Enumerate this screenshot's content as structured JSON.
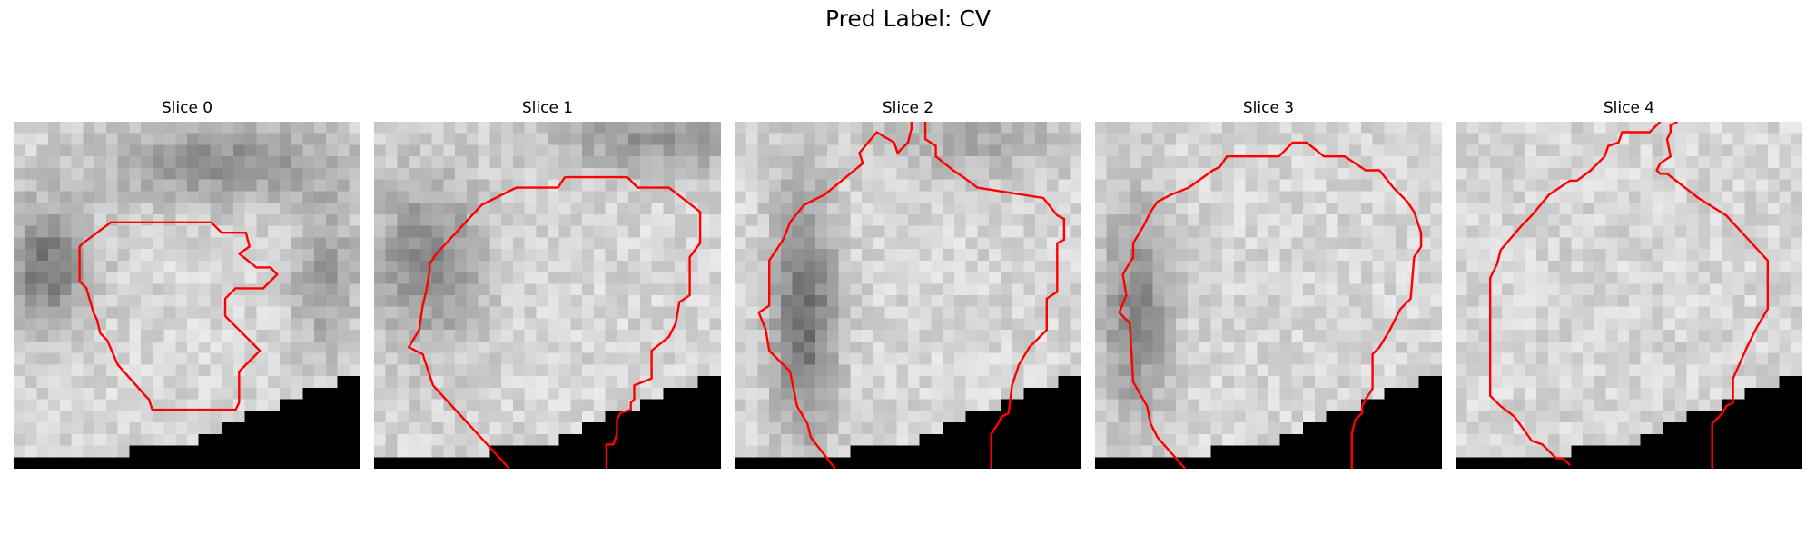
{
  "figure": {
    "title": "Pred Label: CV"
  },
  "panels": [
    {
      "title": "Slice 0",
      "seed": 11,
      "dark_band": "upper-left",
      "contour": [
        [
          0.2,
          0.35
        ],
        [
          0.28,
          0.29
        ],
        [
          0.57,
          0.29
        ],
        [
          0.6,
          0.32
        ],
        [
          0.67,
          0.32
        ],
        [
          0.68,
          0.36
        ],
        [
          0.65,
          0.38
        ],
        [
          0.7,
          0.42
        ],
        [
          0.74,
          0.42
        ],
        [
          0.76,
          0.44
        ],
        [
          0.72,
          0.48
        ],
        [
          0.64,
          0.48
        ],
        [
          0.61,
          0.51
        ],
        [
          0.61,
          0.56
        ],
        [
          0.71,
          0.66
        ],
        [
          0.65,
          0.72
        ],
        [
          0.65,
          0.81
        ],
        [
          0.64,
          0.83
        ],
        [
          0.4,
          0.83
        ],
        [
          0.39,
          0.8
        ],
        [
          0.38,
          0.79
        ],
        [
          0.3,
          0.7
        ],
        [
          0.27,
          0.63
        ],
        [
          0.25,
          0.61
        ],
        [
          0.24,
          0.57
        ],
        [
          0.23,
          0.55
        ],
        [
          0.21,
          0.48
        ],
        [
          0.19,
          0.46
        ],
        [
          0.19,
          0.36
        ]
      ],
      "closed": true
    },
    {
      "title": "Slice 1",
      "seed": 23,
      "dark_band": "left",
      "contour": [
        [
          0.39,
          1.0
        ],
        [
          0.17,
          0.76
        ],
        [
          0.14,
          0.67
        ],
        [
          0.1,
          0.65
        ],
        [
          0.13,
          0.6
        ],
        [
          0.14,
          0.53
        ],
        [
          0.15,
          0.49
        ],
        [
          0.16,
          0.43
        ],
        [
          0.16,
          0.41
        ],
        [
          0.18,
          0.38
        ],
        [
          0.31,
          0.24
        ],
        [
          0.35,
          0.22
        ],
        [
          0.41,
          0.19
        ],
        [
          0.53,
          0.19
        ],
        [
          0.55,
          0.16
        ],
        [
          0.73,
          0.16
        ],
        [
          0.76,
          0.19
        ],
        [
          0.85,
          0.19
        ],
        [
          0.94,
          0.26
        ],
        [
          0.94,
          0.35
        ],
        [
          0.91,
          0.39
        ],
        [
          0.91,
          0.5
        ],
        [
          0.88,
          0.52
        ],
        [
          0.87,
          0.58
        ],
        [
          0.85,
          0.62
        ],
        [
          0.8,
          0.66
        ],
        [
          0.8,
          0.74
        ],
        [
          0.75,
          0.76
        ],
        [
          0.75,
          0.8
        ],
        [
          0.74,
          0.81
        ],
        [
          0.74,
          0.83
        ],
        [
          0.71,
          0.84
        ],
        [
          0.7,
          0.86
        ],
        [
          0.7,
          0.9
        ],
        [
          0.69,
          0.93
        ],
        [
          0.67,
          0.93
        ],
        [
          0.67,
          1.0
        ]
      ],
      "closed": false
    },
    {
      "title": "Slice 2",
      "seed": 37,
      "dark_band": "left-strip",
      "contour": [
        [
          0.29,
          1.0
        ],
        [
          0.22,
          0.91
        ],
        [
          0.21,
          0.87
        ],
        [
          0.18,
          0.82
        ],
        [
          0.16,
          0.72
        ],
        [
          0.1,
          0.66
        ],
        [
          0.09,
          0.6
        ],
        [
          0.07,
          0.55
        ],
        [
          0.1,
          0.53
        ],
        [
          0.1,
          0.4
        ],
        [
          0.14,
          0.34
        ],
        [
          0.16,
          0.29
        ],
        [
          0.2,
          0.24
        ],
        [
          0.26,
          0.21
        ],
        [
          0.37,
          0.12
        ],
        [
          0.36,
          0.09
        ],
        [
          0.41,
          0.03
        ],
        [
          0.46,
          0.06
        ],
        [
          0.47,
          0.09
        ],
        [
          0.5,
          0.06
        ],
        [
          0.51,
          0.02
        ],
        [
          0.51,
          0.0
        ]
      ],
      "closed": false
    },
    {
      "title": "Slice 3",
      "seed": 53,
      "dark_band": "left-mid",
      "contour": [
        [
          0.26,
          1.0
        ],
        [
          0.18,
          0.91
        ],
        [
          0.16,
          0.87
        ],
        [
          0.15,
          0.82
        ],
        [
          0.11,
          0.75
        ],
        [
          0.1,
          0.58
        ],
        [
          0.07,
          0.55
        ],
        [
          0.09,
          0.5
        ],
        [
          0.08,
          0.44
        ],
        [
          0.11,
          0.39
        ],
        [
          0.11,
          0.35
        ],
        [
          0.14,
          0.3
        ],
        [
          0.16,
          0.26
        ],
        [
          0.18,
          0.23
        ],
        [
          0.22,
          0.21
        ],
        [
          0.27,
          0.19
        ],
        [
          0.34,
          0.14
        ],
        [
          0.36,
          0.13
        ],
        [
          0.38,
          0.1
        ],
        [
          0.47,
          0.1
        ],
        [
          0.53,
          0.1
        ],
        [
          0.57,
          0.06
        ],
        [
          0.61,
          0.06
        ],
        [
          0.66,
          0.1
        ],
        [
          0.72,
          0.1
        ],
        [
          0.78,
          0.14
        ],
        [
          0.82,
          0.14
        ],
        [
          0.86,
          0.19
        ],
        [
          0.9,
          0.23
        ],
        [
          0.92,
          0.26
        ],
        [
          0.94,
          0.32
        ],
        [
          0.94,
          0.36
        ],
        [
          0.92,
          0.39
        ],
        [
          0.91,
          0.51
        ],
        [
          0.88,
          0.54
        ],
        [
          0.85,
          0.6
        ],
        [
          0.82,
          0.65
        ],
        [
          0.8,
          0.67
        ],
        [
          0.8,
          0.77
        ],
        [
          0.78,
          0.8
        ],
        [
          0.77,
          0.82
        ],
        [
          0.77,
          0.84
        ],
        [
          0.76,
          0.85
        ],
        [
          0.75,
          0.86
        ],
        [
          0.74,
          0.9
        ],
        [
          0.74,
          1.0
        ]
      ],
      "closed": false
    },
    {
      "title": "Slice 4",
      "seed": 71,
      "dark_band": "none",
      "contour": [
        [
          0.29,
          0.97
        ],
        [
          0.25,
          0.93
        ],
        [
          0.22,
          0.92
        ],
        [
          0.17,
          0.85
        ],
        [
          0.13,
          0.82
        ],
        [
          0.1,
          0.79
        ],
        [
          0.1,
          0.45
        ],
        [
          0.12,
          0.41
        ],
        [
          0.13,
          0.37
        ],
        [
          0.19,
          0.3
        ],
        [
          0.22,
          0.27
        ],
        [
          0.27,
          0.21
        ],
        [
          0.3,
          0.19
        ],
        [
          0.33,
          0.17
        ],
        [
          0.35,
          0.17
        ],
        [
          0.39,
          0.14
        ],
        [
          0.43,
          0.1
        ],
        [
          0.44,
          0.07
        ],
        [
          0.47,
          0.06
        ],
        [
          0.48,
          0.03
        ],
        [
          0.52,
          0.03
        ],
        [
          0.56,
          0.03
        ],
        [
          0.59,
          0.0
        ]
      ],
      "closed": false
    }
  ]
}
